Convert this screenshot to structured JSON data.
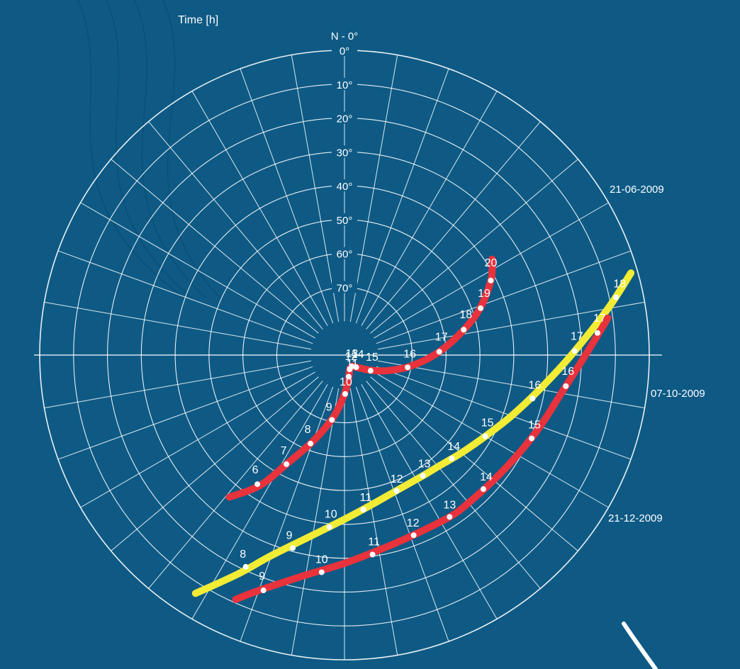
{
  "colors": {
    "background": "#0e5a85",
    "grid": "#ffffff",
    "summer_curve": "#e8323c",
    "autumn_curve": "#f2ec34",
    "winter_curve": "#e8323c",
    "hour_marker": "#ffffff"
  },
  "chart_data": {
    "type": "polar-sun-path",
    "y_axis_label": "Time [h]",
    "north_label": "N - 0°",
    "altitude_rings_deg": [
      0,
      10,
      20,
      30,
      40,
      50,
      60,
      70
    ],
    "altitude_labels": [
      "0°",
      "10°",
      "20°",
      "30°",
      "40°",
      "50°",
      "60°",
      "70°"
    ],
    "radial_lines_every_deg": 10,
    "series": [
      {
        "name": "21-06-2009",
        "color": "#e8323c",
        "curve_points": [
          [
            123,
            38.0
          ],
          [
            117,
            41.5
          ],
          [
            108,
            48.5
          ],
          [
            99,
            56.5
          ],
          [
            90,
            63.5
          ],
          [
            80,
            70.5
          ],
          [
            70,
            76.5
          ],
          [
            60,
            81.0
          ],
          [
            50,
            84.0
          ],
          [
            40,
            85.5
          ],
          [
            33,
            86.0
          ],
          [
            20,
            85.5
          ],
          [
            10,
            83.0
          ],
          [
            0,
            78.5
          ],
          [
            -10,
            71.5
          ],
          [
            -20,
            63.0
          ],
          [
            -28,
            53.5
          ],
          [
            -33,
            44.0
          ],
          [
            -39,
            36.0
          ]
        ],
        "hours": [
          "20",
          "19",
          "18",
          "17",
          "16",
          "15",
          "14",
          "13",
          "12",
          "11",
          "10",
          "9",
          "8",
          "7",
          "6"
        ],
        "hour_points": [
          [
            117,
            41.5
          ],
          [
            109,
            47.5
          ],
          [
            102,
            54.0
          ],
          [
            92,
            62.0
          ],
          [
            79,
            71.0
          ],
          [
            59,
            81.0
          ],
          [
            44,
            85.0
          ],
          [
            33,
            86.0
          ],
          [
            20,
            85.5
          ],
          [
            11,
            83.5
          ],
          [
            1,
            78.5
          ],
          [
            -11,
            70.5
          ],
          [
            -21,
            62.0
          ],
          [
            -28,
            53.5
          ],
          [
            -34,
            44.0
          ]
        ],
        "hour_label_offsets": [
          [
            0,
            -20
          ],
          [
            5,
            -16
          ],
          [
            3,
            -16
          ],
          [
            3,
            -16
          ],
          [
            3,
            -14
          ],
          [
            2,
            -14
          ],
          [
            2,
            -13
          ],
          [
            0,
            -13
          ],
          [
            2,
            -13
          ],
          [
            5,
            -13
          ],
          [
            1,
            -12
          ],
          [
            -4,
            -13
          ],
          [
            -4,
            -15
          ],
          [
            -4,
            -14
          ],
          [
            -3,
            -15
          ]
        ]
      },
      {
        "name": "07-10-2009",
        "color": "#f2ec34",
        "curve_points": [
          [
            106,
            2.0
          ],
          [
            100,
            11.0
          ],
          [
            90,
            23.0
          ],
          [
            80,
            31.5
          ],
          [
            70,
            37.5
          ],
          [
            60,
            42.0
          ],
          [
            50,
            45.0
          ],
          [
            40,
            47.0
          ],
          [
            33,
            47.5
          ],
          [
            20,
            47.0
          ],
          [
            10,
            45.0
          ],
          [
            0,
            41.5
          ],
          [
            -10,
            36.0
          ],
          [
            -20,
            27.0
          ],
          [
            -26,
            18.0
          ],
          [
            -32,
            7.0
          ]
        ],
        "hours": [
          "18",
          "17",
          "16",
          "15",
          "14",
          "13",
          "12",
          "11",
          "10",
          "9",
          "8"
        ],
        "hour_points": [
          [
            102,
            8.0
          ],
          [
            91,
            22.0
          ],
          [
            77,
            33.0
          ],
          [
            60,
            42.0
          ],
          [
            46,
            46.0
          ],
          [
            33,
            47.5
          ],
          [
            21,
            47.0
          ],
          [
            7,
            44.0
          ],
          [
            -5,
            39.0
          ],
          [
            -15,
            31.0
          ],
          [
            -25,
            21.0
          ]
        ],
        "hour_label_offsets": [
          [
            5,
            -14
          ],
          [
            3,
            -16
          ],
          [
            3,
            -14
          ],
          [
            3,
            -14
          ],
          [
            3,
            -12
          ],
          [
            2,
            -12
          ],
          [
            0,
            -12
          ],
          [
            3,
            -12
          ],
          [
            2,
            -13
          ],
          [
            -5,
            -13
          ],
          [
            -4,
            -13
          ]
        ]
      },
      {
        "name": "21-12-2009",
        "color": "#e8323c",
        "curve_points": [
          [
            98,
            11.5
          ],
          [
            95,
            14.5
          ],
          [
            87,
            21.0
          ],
          [
            80,
            25.0
          ],
          [
            70,
            28.5
          ],
          [
            60,
            31.0
          ],
          [
            50,
            32.5
          ],
          [
            40,
            33.0
          ],
          [
            33,
            33.0
          ],
          [
            20,
            33.0
          ],
          [
            10,
            31.5
          ],
          [
            0,
            28.5
          ],
          [
            -10,
            24.0
          ],
          [
            -20,
            16.0
          ],
          [
            -24,
            11.0
          ]
        ],
        "hours": [
          "17",
          "16",
          "15",
          "14",
          "13",
          "12",
          "11",
          "10",
          "9"
        ],
        "hour_points": [
          [
            95,
            15.0
          ],
          [
            82,
            24.0
          ],
          [
            66,
            29.5
          ],
          [
            46,
            33.0
          ],
          [
            33,
            33.0
          ],
          [
            21,
            33.0
          ],
          [
            8,
            30.5
          ],
          [
            -6,
            25.5
          ],
          [
            -19,
            16.5
          ]
        ],
        "hour_label_offsets": [
          [
            3,
            -16
          ],
          [
            3,
            -16
          ],
          [
            4,
            -14
          ],
          [
            4,
            -12
          ],
          [
            0,
            -12
          ],
          [
            -1,
            -12
          ],
          [
            2,
            -13
          ],
          [
            0,
            -13
          ],
          [
            -2,
            -15
          ]
        ]
      }
    ]
  }
}
